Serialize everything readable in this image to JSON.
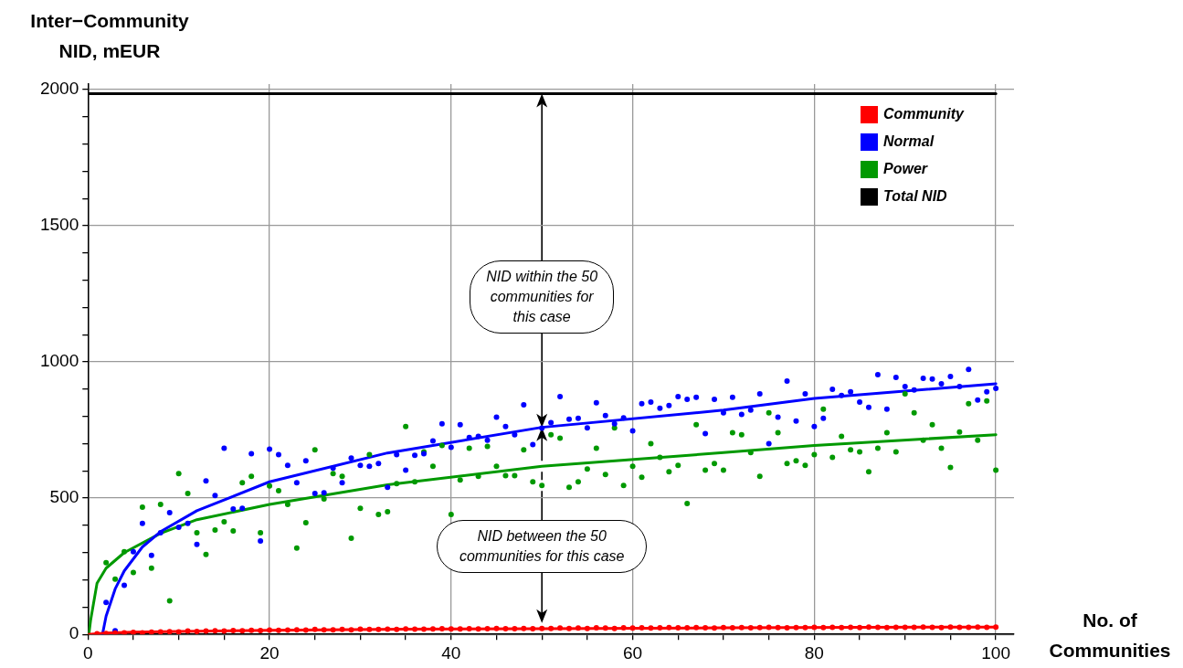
{
  "chart_data": {
    "type": "scatter",
    "xlabel": "No. of Communities",
    "ylabel": "Inter−Community NID, mEUR",
    "xlim": [
      0,
      102
    ],
    "ylim": [
      0,
      2020
    ],
    "xticks": [
      0,
      {
        "value": 5,
        "label": null
      },
      {
        "value": 10,
        "label": null
      },
      {
        "value": 15,
        "label": null
      },
      20,
      {
        "value": 25,
        "label": null
      },
      {
        "value": 30,
        "label": null
      },
      {
        "value": 35,
        "label": null
      },
      40,
      {
        "value": 45,
        "label": null
      },
      {
        "value": 50,
        "label": null
      },
      {
        "value": 55,
        "label": null
      },
      60,
      {
        "value": 65,
        "label": null
      },
      {
        "value": 70,
        "label": null
      },
      {
        "value": 75,
        "label": null
      },
      80,
      {
        "value": 85,
        "label": null
      },
      {
        "value": 90,
        "label": null
      },
      {
        "value": 95,
        "label": null
      },
      100
    ],
    "yticks": [
      0,
      {
        "value": 100,
        "label": null
      },
      {
        "value": 200,
        "label": null
      },
      {
        "value": 300,
        "label": null
      },
      {
        "value": 400,
        "label": null
      },
      500,
      {
        "value": 600,
        "label": null
      },
      {
        "value": 700,
        "label": null
      },
      {
        "value": 800,
        "label": null
      },
      {
        "value": 900,
        "label": null
      },
      1000,
      {
        "value": 1100,
        "label": null
      },
      {
        "value": 1200,
        "label": null
      },
      {
        "value": 1300,
        "label": null
      },
      {
        "value": 1400,
        "label": null
      },
      1500,
      {
        "value": 1600,
        "label": null
      },
      {
        "value": 1700,
        "label": null
      },
      {
        "value": 1800,
        "label": null
      },
      {
        "value": 1900,
        "label": null
      },
      2000
    ],
    "grid": true,
    "legend": "top right",
    "marker": "circle",
    "series": [
      {
        "name": "Community",
        "type": "scatter",
        "color": "#ff0000",
        "x": [
          1,
          2,
          3,
          4,
          5,
          6,
          7,
          8,
          9,
          10,
          11,
          12,
          13,
          14,
          15,
          16,
          17,
          18,
          19,
          20,
          21,
          22,
          23,
          24,
          25,
          26,
          27,
          28,
          29,
          30,
          31,
          32,
          33,
          34,
          35,
          36,
          37,
          38,
          39,
          40,
          41,
          42,
          43,
          44,
          45,
          46,
          47,
          48,
          49,
          50,
          51,
          52,
          53,
          54,
          55,
          56,
          57,
          58,
          59,
          60,
          61,
          62,
          63,
          64,
          65,
          66,
          67,
          68,
          69,
          70,
          71,
          72,
          73,
          74,
          75,
          76,
          77,
          78,
          79,
          80,
          81,
          82,
          83,
          84,
          85,
          86,
          87,
          88,
          89,
          90,
          91,
          92,
          93,
          94,
          95,
          96,
          97,
          98,
          99,
          100
        ],
        "values": [
          2,
          3,
          5,
          6,
          7,
          6,
          8,
          9,
          10,
          9,
          12,
          11,
          12,
          13,
          12,
          14,
          13,
          15,
          14,
          16,
          15,
          16,
          17,
          16,
          18,
          17,
          17,
          18,
          17,
          19,
          18,
          18,
          19,
          18,
          20,
          19,
          19,
          20,
          21,
          20,
          20,
          21,
          20,
          21,
          22,
          21,
          21,
          22,
          21,
          22,
          22,
          23,
          22,
          23,
          22,
          24,
          23,
          22,
          24,
          23,
          24,
          23,
          24,
          25,
          24,
          24,
          25,
          24,
          23,
          25,
          24,
          25,
          24,
          25,
          26,
          25,
          24,
          25,
          25,
          26,
          25,
          26,
          25,
          26,
          25,
          27,
          26,
          25,
          26,
          26,
          26,
          27,
          26,
          25,
          27,
          26,
          26,
          27,
          26,
          27
        ]
      },
      {
        "name": "Normal",
        "type": "scatter",
        "color": "#0000ff",
        "x": [
          2,
          3,
          4,
          5,
          6,
          7,
          8,
          9,
          10,
          11,
          12,
          13,
          14,
          15,
          16,
          17,
          18,
          19,
          20,
          21,
          22,
          23,
          24,
          25,
          26,
          27,
          28,
          29,
          30,
          31,
          32,
          33,
          34,
          35,
          36,
          37,
          38,
          39,
          40,
          41,
          42,
          43,
          44,
          45,
          46,
          47,
          48,
          49,
          50,
          51,
          52,
          53,
          54,
          55,
          56,
          57,
          58,
          59,
          60,
          61,
          62,
          63,
          64,
          65,
          66,
          67,
          68,
          69,
          70,
          71,
          72,
          73,
          74,
          75,
          76,
          77,
          78,
          79,
          80,
          81,
          82,
          83,
          84,
          85,
          86,
          87,
          88,
          89,
          90,
          91,
          92,
          93,
          94,
          95,
          96,
          97,
          98,
          99,
          100
        ],
        "values": [
          117,
          13,
          180,
          303,
          407,
          290,
          373,
          447,
          393,
          407,
          330,
          563,
          510,
          683,
          460,
          463,
          663,
          343,
          680,
          660,
          620,
          557,
          637,
          517,
          520,
          610,
          557,
          647,
          620,
          617,
          627,
          540,
          660,
          603,
          657,
          663,
          710,
          773,
          687,
          770,
          723,
          727,
          713,
          797,
          763,
          733,
          843,
          697,
          757,
          777,
          873,
          790,
          793,
          758,
          850,
          803,
          773,
          795,
          747,
          847,
          853,
          830,
          840,
          873,
          863,
          870,
          737,
          863,
          813,
          870,
          807,
          823,
          883,
          700,
          797,
          930,
          783,
          883,
          763,
          793,
          900,
          877,
          890,
          853,
          833,
          953,
          827,
          943,
          910,
          897,
          940,
          937,
          920,
          947,
          910,
          973,
          860,
          890,
          903
        ]
      },
      {
        "name": "Power",
        "type": "scatter",
        "color": "#009900",
        "x": [
          2,
          3,
          4,
          5,
          6,
          7,
          8,
          9,
          10,
          11,
          12,
          13,
          14,
          15,
          16,
          17,
          18,
          19,
          20,
          21,
          22,
          23,
          24,
          25,
          26,
          27,
          28,
          29,
          30,
          31,
          32,
          33,
          34,
          35,
          36,
          37,
          38,
          39,
          40,
          41,
          42,
          43,
          44,
          45,
          46,
          47,
          48,
          49,
          50,
          51,
          52,
          53,
          54,
          55,
          56,
          57,
          58,
          59,
          60,
          61,
          62,
          63,
          64,
          65,
          66,
          67,
          68,
          69,
          70,
          71,
          72,
          73,
          74,
          75,
          76,
          77,
          78,
          79,
          80,
          81,
          82,
          83,
          84,
          85,
          86,
          87,
          88,
          89,
          90,
          91,
          92,
          93,
          94,
          95,
          96,
          97,
          98,
          99,
          100
        ],
        "values": [
          263,
          203,
          303,
          227,
          467,
          243,
          477,
          123,
          590,
          517,
          373,
          293,
          383,
          413,
          380,
          557,
          580,
          373,
          545,
          527,
          477,
          317,
          410,
          677,
          497,
          590,
          580,
          353,
          463,
          660,
          440,
          450,
          553,
          763,
          560,
          670,
          617,
          693,
          440,
          567,
          683,
          580,
          690,
          617,
          583,
          583,
          677,
          560,
          547,
          733,
          720,
          540,
          560,
          607,
          683,
          587,
          758,
          547,
          617,
          577,
          700,
          650,
          597,
          620,
          480,
          770,
          603,
          627,
          603,
          740,
          733,
          667,
          580,
          813,
          740,
          627,
          637,
          620,
          660,
          827,
          650,
          727,
          677,
          670,
          597,
          683,
          740,
          670,
          883,
          813,
          713,
          770,
          683,
          613,
          743,
          847,
          713,
          857,
          603
        ]
      },
      {
        "name": "Total NID",
        "type": "line",
        "color": "#000000",
        "marker": "none",
        "x": [
          0,
          100
        ],
        "values": [
          1985,
          1985
        ]
      },
      {
        "type": "line",
        "color": "#ff0000",
        "marker": "none",
        "x": [
          0,
          2,
          5,
          10,
          20,
          35,
          50,
          70,
          100
        ],
        "values": [
          0,
          5,
          8,
          11,
          15,
          19,
          21,
          24,
          27
        ]
      },
      {
        "type": "line",
        "color": "#0000ff",
        "marker": "none",
        "x": [
          1.6,
          2,
          3,
          4,
          6,
          8,
          12,
          20,
          33,
          50,
          70,
          80,
          100
        ],
        "values": [
          0,
          67,
          167,
          233,
          321,
          377,
          454,
          560,
          666,
          760,
          823,
          866,
          920
        ]
      },
      {
        "type": "line",
        "color": "#009900",
        "marker": "none",
        "x": [
          0.1,
          0.3,
          1,
          2,
          4,
          8,
          12,
          20,
          33,
          50,
          70,
          80,
          100
        ],
        "values": [
          0,
          53,
          188,
          243,
          300,
          371,
          421,
          477,
          549,
          617,
          667,
          693,
          733
        ]
      }
    ],
    "annotations": [
      "NID within the 50 communities for this case",
      "NID between the 50 communities for this case"
    ]
  }
}
